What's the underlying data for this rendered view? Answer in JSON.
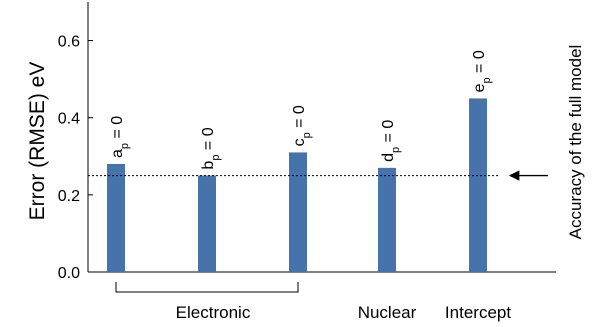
{
  "chart_data": {
    "type": "bar",
    "title": "",
    "ylabel": "Error (RMSE) eV",
    "ylim": [
      0,
      0.7
    ],
    "yticks": [
      0.0,
      0.2,
      0.4,
      0.6
    ],
    "ytick_labels": [
      "0.0",
      "0.2",
      "0.4",
      "0.6"
    ],
    "bar_color": "#4573aa",
    "bars": [
      {
        "letter": "a",
        "sub": "p",
        "eq": " = 0",
        "value": 0.28
      },
      {
        "letter": "b",
        "sub": "p",
        "eq": " = 0",
        "value": 0.25
      },
      {
        "letter": "c",
        "sub": "p",
        "eq": " = 0",
        "value": 0.31
      },
      {
        "letter": "d",
        "sub": "p",
        "eq": " = 0",
        "value": 0.27
      },
      {
        "letter": "e",
        "sub": "p",
        "eq": " = 0",
        "value": 0.45
      }
    ],
    "reference_line": {
      "value": 0.25,
      "style": "dashed",
      "label": "Accuracy of the full model"
    },
    "groups": [
      {
        "label": "Electronic",
        "bars": [
          0,
          1,
          2
        ],
        "bracket": true
      },
      {
        "label": "Nuclear",
        "bars": [
          3
        ],
        "bracket": false
      },
      {
        "label": "Intercept",
        "bars": [
          4
        ],
        "bracket": false
      }
    ]
  }
}
